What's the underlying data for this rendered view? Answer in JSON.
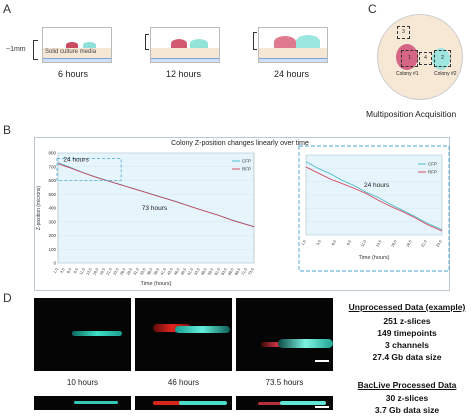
{
  "panels": {
    "A": {
      "letter": "A",
      "thickness_label": "~1mm",
      "media_label": "Solid culture media",
      "timepoints": [
        "6 hours",
        "12 hours",
        "24 hours"
      ]
    },
    "B": {
      "letter": "B"
    },
    "C": {
      "letter": "C",
      "caption": "Multiposition Acquisition",
      "colony1": "Colony #1",
      "colony2": "Colony #2",
      "box_labels": [
        "3",
        "1",
        "4",
        "2"
      ]
    },
    "D": {
      "letter": "D",
      "timepoints": [
        "10 hours",
        "46 hours",
        "73.5 hours"
      ],
      "unprocessed": {
        "title": "Unprocessed Data (example)",
        "lines": [
          "251 z-slices",
          "149 timepoints",
          "3 channels",
          "27.4 Gb data size"
        ]
      },
      "processed": {
        "title": "BacLive Processed Data",
        "lines": [
          "30 z-slices",
          "3.7 Gb data size"
        ]
      }
    }
  },
  "colors": {
    "cfp": "#3fb7c9",
    "rfp": "#d33a4e",
    "dashed_box": "#4aa6d8",
    "plot_bg": "#e6f5fb"
  },
  "chart_data": {
    "type": "line",
    "title": "Colony Z-position changes linearly over time",
    "xlabel": "Time (hours)",
    "ylabel": "Z-position (microns)",
    "ylim": [
      0,
      800
    ],
    "yticks": [
      0,
      100,
      200,
      300,
      400,
      500,
      600,
      700,
      800
    ],
    "xticks": [
      "1.0",
      "3.5",
      "6.0",
      "8.5",
      "11.0",
      "13.5",
      "16.0",
      "18.5",
      "21.0",
      "23.5",
      "26.0",
      "28.5",
      "31.0",
      "33.5",
      "36.0",
      "38.5",
      "41.0",
      "43.5",
      "46.0",
      "48.5",
      "51.0",
      "53.5",
      "56.0",
      "58.5",
      "61.0",
      "63.5",
      "66.0",
      "68.5",
      "71.0",
      "73.5"
    ],
    "x": [
      1,
      5,
      10,
      15,
      20,
      25,
      30,
      35,
      40,
      45,
      50,
      55,
      60,
      65,
      70,
      73.5
    ],
    "series": [
      {
        "name": "CFP",
        "values": [
          730,
          700,
          660,
          625,
          595,
          565,
          535,
          505,
          475,
          445,
          412,
          380,
          350,
          315,
          285,
          265
        ]
      },
      {
        "name": "RFP",
        "values": [
          722,
          695,
          658,
          624,
          594,
          564,
          534,
          504,
          474,
          444,
          411,
          379,
          349,
          314,
          284,
          264
        ]
      }
    ],
    "annotations": [
      "24 hours",
      "73 hours"
    ],
    "inset": {
      "annotation": "24 hours",
      "xticks": [
        "1.0",
        "3.5",
        "6.0",
        "8.5",
        "11.0",
        "13.5",
        "16.0",
        "18.5",
        "21.0",
        "23.5"
      ],
      "x": [
        1,
        3,
        5,
        7,
        9,
        11,
        13,
        15,
        17,
        19,
        21,
        23.5
      ],
      "series": [
        {
          "name": "CFP",
          "values": [
            730,
            720,
            712,
            702,
            694,
            684,
            676,
            666,
            657,
            648,
            638,
            628
          ]
        },
        {
          "name": "RFP",
          "values": [
            722,
            713,
            704,
            697,
            690,
            682,
            672,
            663,
            655,
            646,
            636,
            626
          ]
        }
      ]
    }
  }
}
